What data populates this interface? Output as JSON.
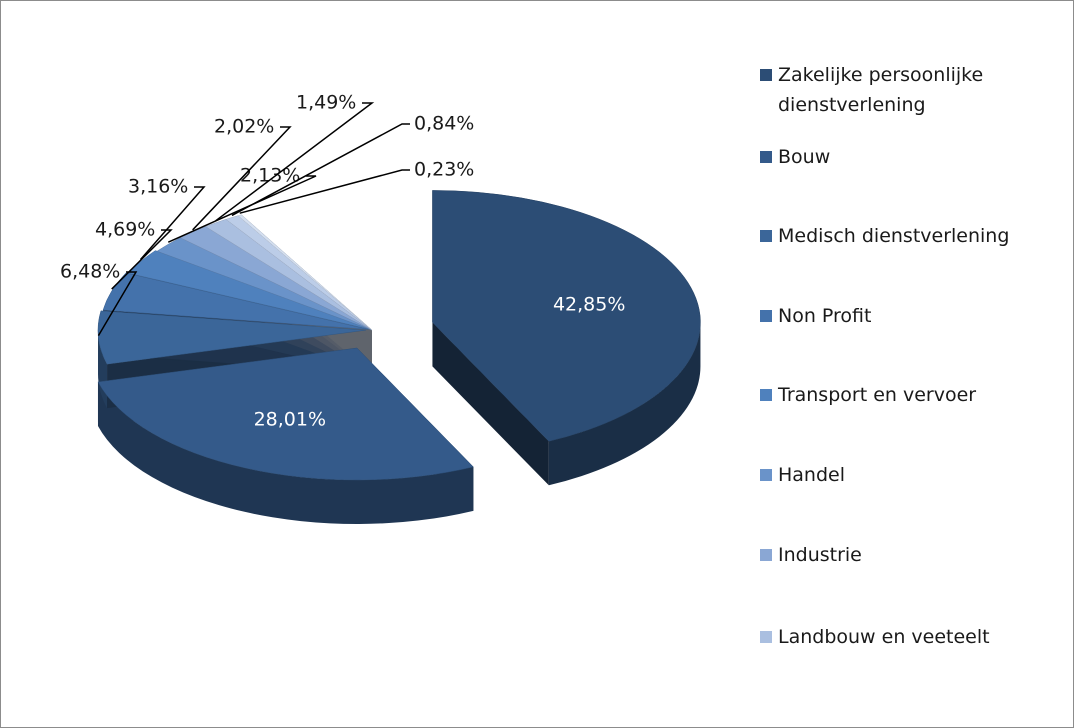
{
  "chart_data": {
    "type": "pie",
    "categories": [
      "Zakelijke persoonlijke dienstverlening",
      "Bouw",
      "Medisch dienstverlening",
      "Non Profit",
      "Transport en vervoer",
      "Handel",
      "Industrie",
      "Landbouw en veeteelt",
      null,
      null
    ],
    "values": [
      42.85,
      28.01,
      6.48,
      4.69,
      3.16,
      2.13,
      2.02,
      1.49,
      0.84,
      0.23
    ],
    "value_labels": [
      "42,85%",
      "28,01%",
      "6,48%",
      "4,69%",
      "3,16%",
      "2,13%",
      "2,02%",
      "1,49%",
      "0,84%",
      "0,23%"
    ],
    "colors": [
      "#2c4d75",
      "#345a8a",
      "#3b6699",
      "#4472ab",
      "#4f81bd",
      "#6a93c9",
      "#8aa7d4",
      "#aabfe0",
      "#bccde8",
      "#d4dff0"
    ]
  }
}
